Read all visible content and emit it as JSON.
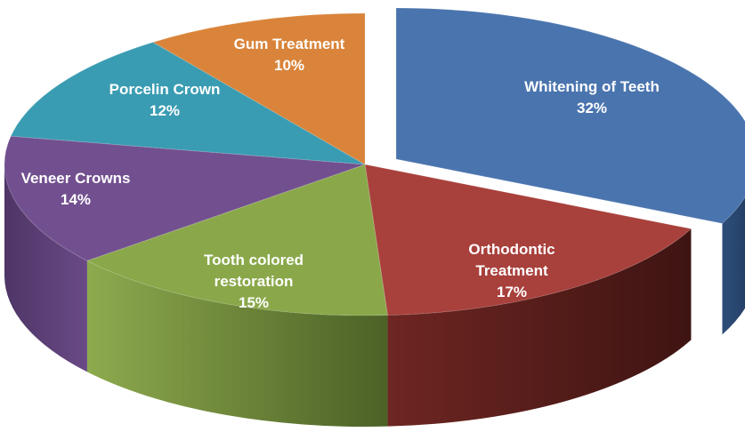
{
  "chart_data": {
    "type": "pie",
    "title": "",
    "legend": "none",
    "slices": [
      {
        "label": "Whitening of Teeth",
        "value": 32,
        "value_label": "32%",
        "color": "#4A74AE",
        "exploded": true
      },
      {
        "label": "Orthodontic Treatment",
        "value": 17,
        "value_label": "17%",
        "color": "#A8403C"
      },
      {
        "label": "Tooth colored restoration",
        "value": 15,
        "value_label": "15%",
        "color": "#8AA84A"
      },
      {
        "label": "Veneer Crowns",
        "value": 14,
        "value_label": "14%",
        "color": "#72508F"
      },
      {
        "label": "Porcelin Crown",
        "value": 12,
        "value_label": "12%",
        "color": "#3A9CB2"
      },
      {
        "label": "Gum Treatment",
        "value": 10,
        "value_label": "10%",
        "color": "#D9843A"
      }
    ]
  }
}
